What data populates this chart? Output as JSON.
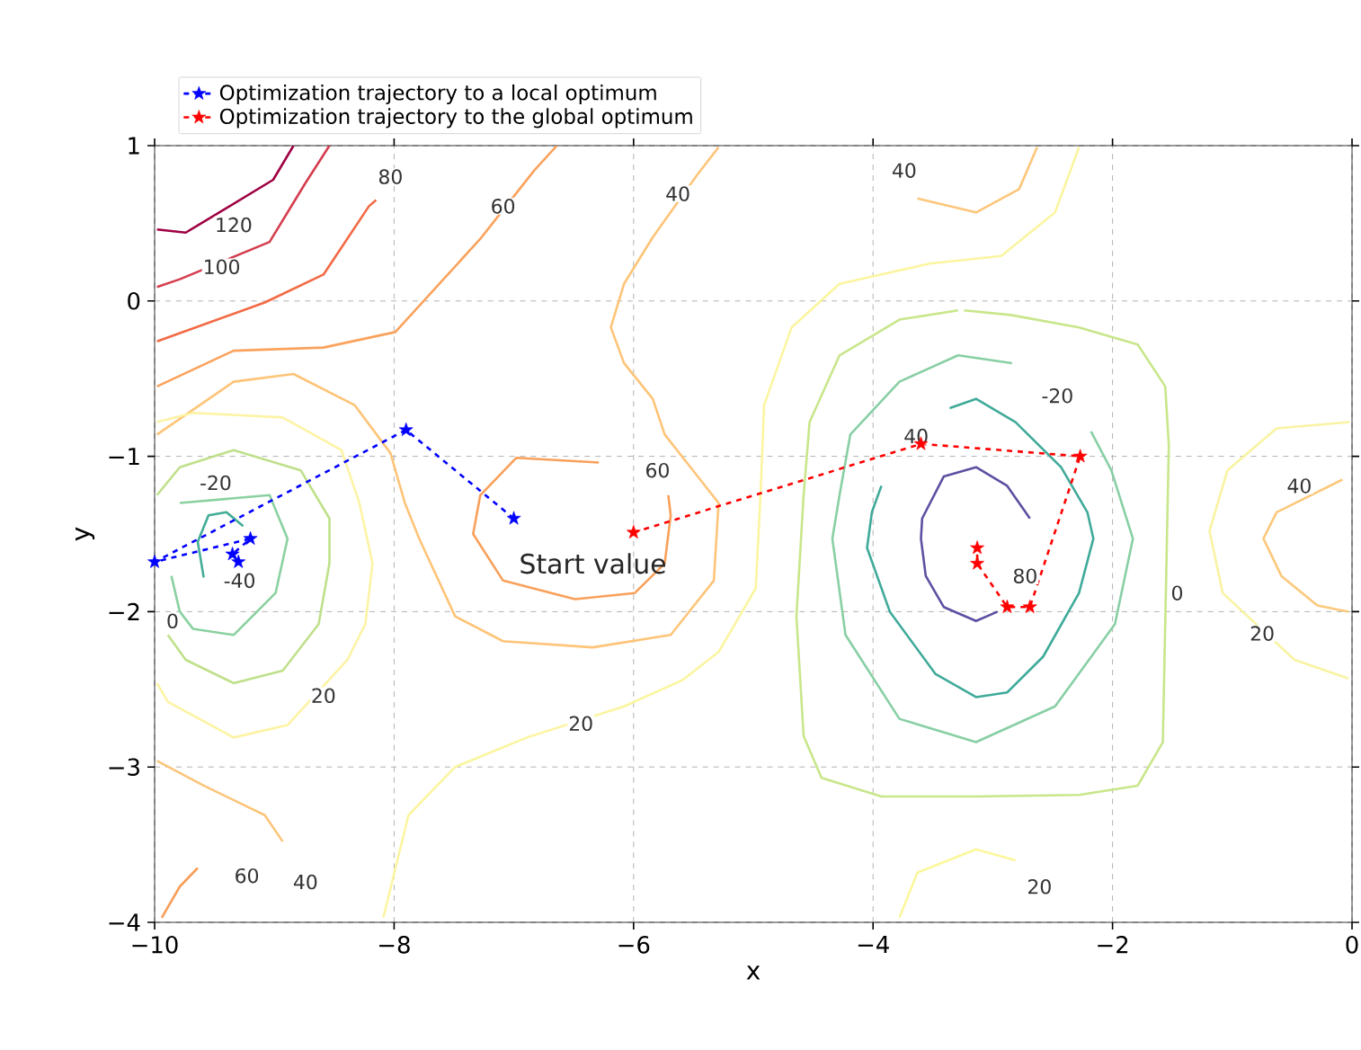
{
  "chart_data": {
    "type": "line",
    "xlabel": "x",
    "ylabel": "y",
    "xlim": [
      -10,
      0
    ],
    "ylim": [
      -4,
      1
    ],
    "xticks": [
      {
        "value": -10,
        "label": "−10"
      },
      {
        "value": -8,
        "label": "−8"
      },
      {
        "value": -6,
        "label": "−6"
      },
      {
        "value": -4,
        "label": "−4"
      },
      {
        "value": -2,
        "label": "−2"
      },
      {
        "value": 0,
        "label": "0"
      }
    ],
    "yticks": [
      {
        "value": -4,
        "label": "−4"
      },
      {
        "value": -3,
        "label": "−3"
      },
      {
        "value": -2,
        "label": "−2"
      },
      {
        "value": -1,
        "label": "−1"
      },
      {
        "value": 0,
        "label": "0"
      },
      {
        "value": 1,
        "label": "1"
      }
    ],
    "grid": true,
    "legend": "top",
    "marker": "none",
    "line_style": "solid",
    "series": [
      {
        "color": "#5e4fa2",
        "x": [
          -2.69,
          -2.88,
          -3.14,
          -3.41,
          -3.59,
          -3.6,
          -3.56,
          -3.41,
          -3.14,
          -2.96
        ],
        "values": [
          -1.4,
          -1.19,
          -1.07,
          -1.13,
          -1.4,
          -1.53,
          -1.77,
          -1.97,
          -2.06,
          -2.0
        ]
      },
      {
        "color": "#3faa9a",
        "x": [
          -3.36,
          -3.14,
          -2.81,
          -2.43,
          -2.21,
          -2.16,
          -2.28,
          -2.58,
          -2.88,
          -3.14,
          -3.48,
          -3.86,
          -4.05,
          -4.01,
          -3.93
        ],
        "values": [
          -0.69,
          -0.63,
          -0.78,
          -1.07,
          -1.36,
          -1.53,
          -1.88,
          -2.29,
          -2.52,
          -2.55,
          -2.4,
          -2.0,
          -1.59,
          -1.36,
          -1.19
        ]
      },
      {
        "color": "#88cfa4",
        "x": [
          -2.84,
          -3.29,
          -3.78,
          -4.19,
          -4.28,
          -4.34,
          -4.23,
          -3.78,
          -3.14,
          -2.48,
          -1.98,
          -1.83,
          -2.01,
          -2.18
        ],
        "values": [
          -0.4,
          -0.35,
          -0.52,
          -0.86,
          -1.25,
          -1.53,
          -2.15,
          -2.69,
          -2.84,
          -2.61,
          -2.08,
          -1.53,
          -1.09,
          -0.84
        ]
      },
      {
        "color": "#c8e68a",
        "x": [
          -3.29,
          -3.78,
          -4.28,
          -4.53,
          -4.58,
          -4.64,
          -4.58,
          -4.43,
          -3.93,
          -3.14,
          -2.28,
          -1.79,
          -1.58,
          -1.56,
          -1.53,
          -1.56,
          -1.79,
          -2.28,
          -2.85,
          -3.24
        ],
        "values": [
          -0.06,
          -0.12,
          -0.35,
          -0.78,
          -1.25,
          -2.03,
          -2.8,
          -3.07,
          -3.19,
          -3.19,
          -3.18,
          -3.12,
          -2.84,
          -2.08,
          -0.93,
          -0.55,
          -0.28,
          -0.17,
          -0.09,
          -0.06
        ]
      },
      {
        "color": "#fbf5a0",
        "x": [
          -2.28,
          -2.48,
          -2.93,
          -3.53,
          -4.28,
          -4.68,
          -4.91,
          -4.94,
          -4.98,
          -5.29,
          -5.59,
          -6.08,
          -6.89,
          -7.49,
          -7.88,
          -8.09
        ],
        "values": [
          0.99,
          0.57,
          0.29,
          0.24,
          0.11,
          -0.17,
          -0.67,
          -1.25,
          -1.85,
          -2.26,
          -2.44,
          -2.61,
          -2.81,
          -3.0,
          -3.31,
          -3.97
        ]
      },
      {
        "color": "#fdc67a",
        "x": [
          -3.63,
          -3.14,
          -2.78,
          -2.63
        ],
        "values": [
          0.66,
          0.57,
          0.72,
          0.99
        ]
      },
      {
        "color": "#fcf79c",
        "x": [
          -3.78,
          -3.63,
          -3.14,
          -2.81
        ],
        "values": [
          -3.97,
          -3.68,
          -3.53,
          -3.6
        ]
      },
      {
        "color": "#f9f3a2",
        "x": [
          -0.02,
          -0.63,
          -1.04,
          -1.19,
          -1.08,
          -0.48,
          -0.03
        ],
        "values": [
          -0.78,
          -0.82,
          -1.09,
          -1.48,
          -1.88,
          -2.31,
          -2.43
        ]
      },
      {
        "color": "#fcc87c",
        "x": [
          -0.08,
          -0.63,
          -0.74,
          -0.59,
          -0.29,
          -0.03
        ],
        "values": [
          -1.15,
          -1.36,
          -1.53,
          -1.77,
          -1.96,
          -2.0
        ]
      },
      {
        "color": "#f9a05a",
        "x": [
          -6.29,
          -6.98,
          -7.28,
          -7.34,
          -7.09,
          -6.49,
          -5.99,
          -5.74,
          -5.69,
          -5.71
        ],
        "values": [
          -1.04,
          -1.01,
          -1.25,
          -1.5,
          -1.8,
          -1.92,
          -1.88,
          -1.69,
          -1.38,
          -1.25
        ]
      },
      {
        "color": "#fec478",
        "x": [
          -9.98,
          -9.34,
          -8.84,
          -8.33,
          -8.03,
          -7.91,
          -7.79,
          -7.49,
          -7.09,
          -6.34,
          -5.69,
          -5.33,
          -5.29,
          -5.74,
          -5.84,
          -6.08,
          -6.19,
          -6.08,
          -5.84,
          -5.47,
          -5.29
        ],
        "values": [
          -0.86,
          -0.52,
          -0.47,
          -0.67,
          -0.98,
          -1.3,
          -1.53,
          -2.03,
          -2.19,
          -2.23,
          -2.15,
          -1.8,
          -1.3,
          -0.86,
          -0.63,
          -0.4,
          -0.17,
          0.11,
          0.41,
          0.81,
          0.99
        ]
      },
      {
        "color": "#faa25c",
        "x": [
          -9.98,
          -9.34,
          -8.59,
          -7.99,
          -7.28,
          -6.83,
          -6.64
        ],
        "values": [
          -0.55,
          -0.32,
          -0.3,
          -0.2,
          0.4,
          0.84,
          1.0
        ]
      },
      {
        "color": "#f26a44",
        "x": [
          -9.98,
          -9.08,
          -8.59,
          -8.21,
          -8.15
        ],
        "values": [
          -0.26,
          -0.01,
          0.17,
          0.61,
          0.65
        ]
      },
      {
        "color": "#d53e4f",
        "x": [
          -9.98,
          -9.79,
          -9.04,
          -8.74,
          -8.54
        ],
        "values": [
          0.09,
          0.14,
          0.38,
          0.76,
          1.0
        ]
      },
      {
        "color": "#9e0142",
        "x": [
          -9.98,
          -9.74,
          -9.01,
          -8.84
        ],
        "values": [
          0.46,
          0.44,
          0.78,
          1.0
        ]
      },
      {
        "color": "#fdf3a4",
        "x": [
          -9.98,
          -9.68,
          -8.93,
          -8.44,
          -8.29,
          -8.18,
          -8.24,
          -8.39,
          -8.89,
          -9.34,
          -9.89,
          -9.98
        ],
        "values": [
          -0.78,
          -0.72,
          -0.75,
          -0.96,
          -1.3,
          -1.69,
          -2.08,
          -2.31,
          -2.73,
          -2.81,
          -2.58,
          -2.46
        ]
      },
      {
        "color": "#bfe08a",
        "x": [
          -9.98,
          -9.79,
          -9.34,
          -8.78,
          -8.54,
          -8.54,
          -8.63,
          -8.93,
          -9.34,
          -9.74,
          -9.89
        ],
        "values": [
          -1.25,
          -1.07,
          -0.96,
          -1.09,
          -1.4,
          -1.69,
          -2.08,
          -2.38,
          -2.46,
          -2.31,
          -2.15
        ]
      },
      {
        "color": "#8ad1a0",
        "x": [
          -9.79,
          -9.04,
          -8.89,
          -8.99,
          -9.34,
          -9.68,
          -9.79,
          -9.86
        ],
        "values": [
          -1.3,
          -1.25,
          -1.53,
          -1.88,
          -2.15,
          -2.11,
          -2.0,
          -1.77
        ]
      },
      {
        "color": "#42ac96",
        "x": [
          -9.59,
          -9.64,
          -9.55,
          -9.4,
          -9.26
        ],
        "values": [
          -1.78,
          -1.55,
          -1.38,
          -1.36,
          -1.45
        ]
      },
      {
        "color": "#fbc57b",
        "x": [
          -9.98,
          -9.59,
          -9.08,
          -8.93
        ],
        "values": [
          -2.96,
          -3.12,
          -3.31,
          -3.48
        ]
      },
      {
        "color": "#f89e58",
        "x": [
          -9.94,
          -9.79,
          -9.64
        ],
        "values": [
          -3.97,
          -3.77,
          -3.65
        ]
      },
      {
        "name": "Optimization trajectory to a local optimum",
        "color": "#0000ff",
        "marker": "star",
        "line_style": "dashed",
        "x": [
          -7.0,
          -7.9,
          -10.0,
          -9.2,
          -9.35,
          -9.3
        ],
        "values": [
          -1.4,
          -0.83,
          -1.68,
          -1.53,
          -1.63,
          -1.68
        ]
      },
      {
        "name": "Optimization trajectory to the global optimum",
        "color": "#ff0000",
        "marker": "star",
        "line_style": "dashed",
        "x": [
          -6.0,
          -3.6,
          -2.27,
          -2.69,
          -2.88,
          -3.13,
          -3.13
        ],
        "values": [
          -1.49,
          -0.92,
          -1.0,
          -1.97,
          -1.97,
          -1.69,
          -1.59
        ]
      }
    ],
    "annotations": [
      {
        "text": "120",
        "x": -9.34,
        "y": 0.49
      },
      {
        "text": "100",
        "x": -9.44,
        "y": 0.22
      },
      {
        "text": "80",
        "x": -8.03,
        "y": 0.8
      },
      {
        "text": "60",
        "x": -7.09,
        "y": 0.61
      },
      {
        "text": "40",
        "x": -5.63,
        "y": 0.69
      },
      {
        "text": "40",
        "x": -3.74,
        "y": 0.84
      },
      {
        "text": "-20",
        "x": -9.49,
        "y": -1.17
      },
      {
        "text": "60",
        "x": -5.8,
        "y": -1.09
      },
      {
        "text": "40",
        "x": -3.64,
        "y": -0.87
      },
      {
        "text": "-20",
        "x": -2.46,
        "y": -0.61
      },
      {
        "text": "40",
        "x": -0.44,
        "y": -1.19
      },
      {
        "text": "-40",
        "x": -9.29,
        "y": -1.8
      },
      {
        "text": "0",
        "x": -9.85,
        "y": -2.06
      },
      {
        "text": "80",
        "x": -2.73,
        "y": -1.77
      },
      {
        "text": "0",
        "x": -1.46,
        "y": -1.88
      },
      {
        "text": "20",
        "x": -0.75,
        "y": -2.14
      },
      {
        "text": "20",
        "x": -8.59,
        "y": -2.54
      },
      {
        "text": "20",
        "x": -6.44,
        "y": -2.72
      },
      {
        "text": "60",
        "x": -9.23,
        "y": -3.7
      },
      {
        "text": "40",
        "x": -8.74,
        "y": -3.74
      },
      {
        "text": "20",
        "x": -2.61,
        "y": -3.77
      },
      "Start value"
    ]
  }
}
